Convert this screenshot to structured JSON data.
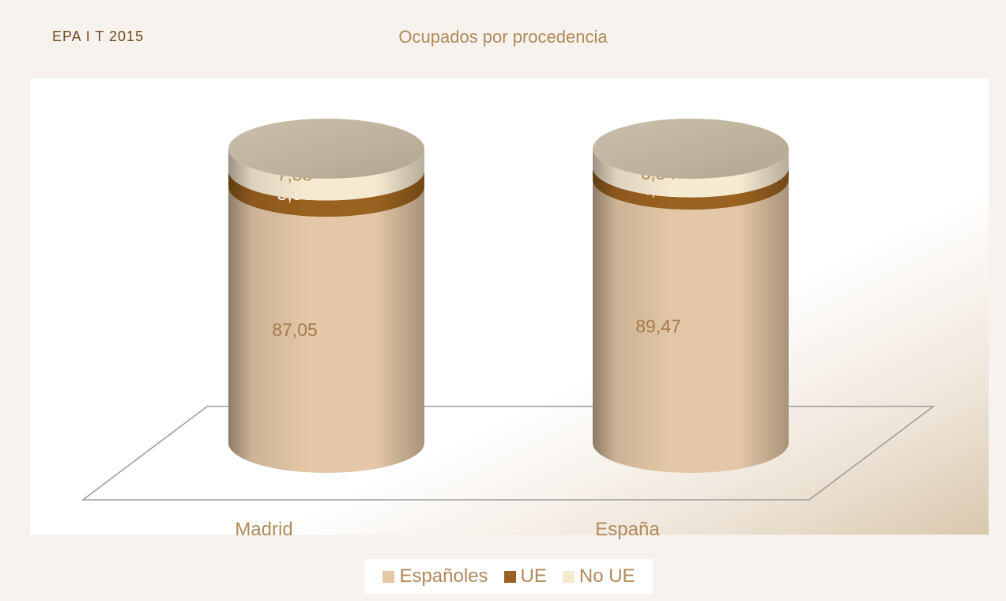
{
  "header": {
    "label": "EPA I T 2015"
  },
  "chart_data": {
    "type": "bar",
    "stacked": true,
    "style": "3d-cylinder",
    "title": "Ocupados por procedencia",
    "categories": [
      "Madrid",
      "España"
    ],
    "series": [
      {
        "name": "Españoles",
        "values": [
          87.05,
          89.47
        ],
        "labels": [
          "87,05",
          "89,47"
        ],
        "color": "#e3c7a6",
        "label_color": "#a87a4a"
      },
      {
        "name": "UE",
        "values": [
          5.57,
          4.18
        ],
        "labels": [
          "5,57",
          "4,18"
        ],
        "color": "#9a6220",
        "label_color": "#ffffff"
      },
      {
        "name": "No UE",
        "values": [
          7.38,
          6.34
        ],
        "labels": [
          "7,38",
          "6,34"
        ],
        "color": "#f6ead1",
        "label_color": "#b08a5a"
      }
    ],
    "ylim": [
      0,
      100
    ],
    "grid": false,
    "legend_position": "bottom"
  }
}
